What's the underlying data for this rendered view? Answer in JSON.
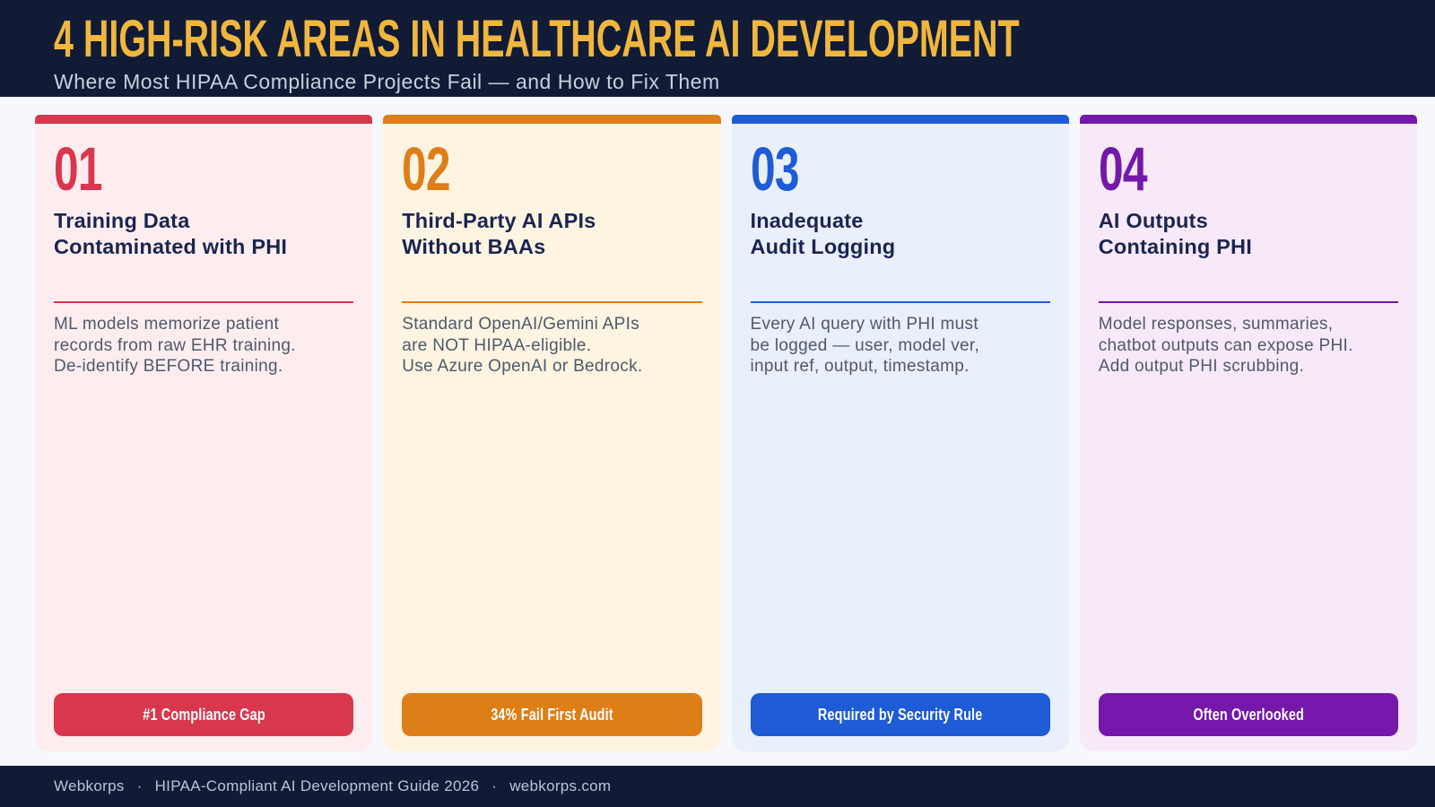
{
  "theme": {
    "page_background": "#F6F8FD",
    "header_background": "#111B36",
    "title_color": "#F0B63E",
    "subtitle_color": "#C9D0DD",
    "card_title_color": "#1B2550",
    "body_text_color": "#4E5A6B",
    "footer_background": "#111B36",
    "footer_text_color": "#BCC4D4",
    "badge_text_color": "#FFFFFF"
  },
  "header": {
    "title": "4 HIGH-RISK AREAS IN HEALTHCARE AI DEVELOPMENT",
    "subtitle": "Where Most HIPAA Compliance Projects Fail — and How to Fix Them"
  },
  "cards": [
    {
      "number": "01",
      "title": [
        "Training Data",
        "Contaminated with PHI"
      ],
      "description": [
        "ML models memorize patient",
        "records from raw EHR training.",
        "De-identify BEFORE training."
      ],
      "badge": "#1 Compliance Gap",
      "colors": {
        "accent": "#D8374E",
        "background": "#FDEDEF"
      }
    },
    {
      "number": "02",
      "title": [
        "Third-Party AI APIs",
        "Without BAAs"
      ],
      "description": [
        "Standard OpenAI/Gemini APIs",
        "are NOT HIPAA-eligible.",
        "Use Azure OpenAI or Bedrock."
      ],
      "badge": "34% Fail First Audit",
      "colors": {
        "accent": "#DD7E17",
        "background": "#FDF4E2"
      }
    },
    {
      "number": "03",
      "title": [
        "Inadequate",
        "Audit Logging"
      ],
      "description": [
        "Every AI query with PHI must",
        "be logged — user, model ver,",
        "input ref, output, timestamp."
      ],
      "badge": "Required by Security Rule",
      "colors": {
        "accent": "#1E5BD6",
        "background": "#E9EFFB"
      }
    },
    {
      "number": "04",
      "title": [
        "AI Outputs",
        "Containing PHI"
      ],
      "description": [
        "Model responses, summaries,",
        "chatbot outputs can expose PHI.",
        "Add output PHI scrubbing."
      ],
      "badge": "Often Overlooked",
      "colors": {
        "accent": "#7417AA",
        "background": "#F8E9F9"
      }
    }
  ],
  "footer": {
    "brand": "Webkorps",
    "separator": "·",
    "guide": "HIPAA-Compliant AI Development Guide 2026",
    "website": "webkorps.com"
  }
}
